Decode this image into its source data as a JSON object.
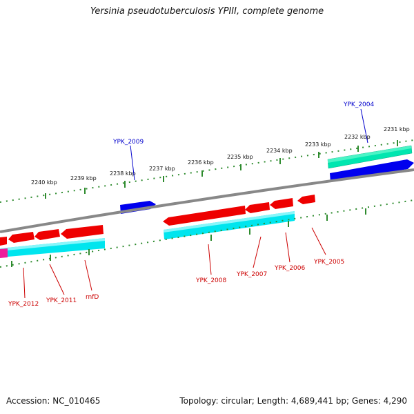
{
  "title": "Yersinia pseudotuberculosis YPIII, complete genome",
  "footer": {
    "accession": "Accession: NC_010465",
    "summary": "Topology: circular; Length: 4,689,441 bp; Genes: 4,290"
  },
  "colors": {
    "forward_gene": "#ff0000",
    "reverse_gene": "#ff0000",
    "forward_cds": "#00e6b0",
    "reverse_cds": "#00e5ee",
    "blue_feature": "#0000ee",
    "backbone": "#888888",
    "tick": "#2e8b2e",
    "forward_label": "#0000cc",
    "reverse_label": "#cc0000"
  },
  "ticks": [
    {
      "label": "2240 kbp"
    },
    {
      "label": "2239 kbp"
    },
    {
      "label": "2238 kbp"
    },
    {
      "label": "2237 kbp"
    },
    {
      "label": "2236 kbp"
    },
    {
      "label": "2235 kbp"
    },
    {
      "label": "2234 kbp"
    },
    {
      "label": "2233 kbp"
    },
    {
      "label": "2232 kbp"
    },
    {
      "label": "2231 kbp"
    }
  ],
  "forward_labels": [
    "YPK_2009",
    "YPK_2004"
  ],
  "reverse_labels": [
    "YPK_2012",
    "YPK_2011",
    "rnfD",
    "YPK_2008",
    "YPK_2007",
    "YPK_2006",
    "YPK_2005"
  ]
}
